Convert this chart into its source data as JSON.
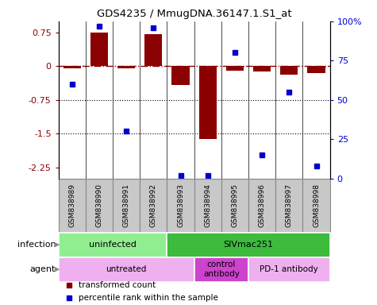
{
  "title": "GDS4235 / MmugDNA.36147.1.S1_at",
  "samples": [
    "GSM838989",
    "GSM838990",
    "GSM838991",
    "GSM838992",
    "GSM838993",
    "GSM838994",
    "GSM838995",
    "GSM838996",
    "GSM838997",
    "GSM838998"
  ],
  "bar_values": [
    -0.05,
    0.75,
    -0.05,
    0.72,
    -0.42,
    -1.62,
    -0.1,
    -0.12,
    -0.18,
    -0.15
  ],
  "dot_values": [
    60,
    97,
    30,
    96,
    2,
    2,
    80,
    15,
    55,
    8
  ],
  "ylim_left": [
    -2.5,
    1.0
  ],
  "ylim_right": [
    0,
    100
  ],
  "left_ticks": [
    0.75,
    0,
    -0.75,
    -1.5,
    -2.25
  ],
  "right_ticks": [
    100,
    75,
    50,
    25,
    0
  ],
  "dotted_lines": [
    -0.75,
    -1.5
  ],
  "bar_color": "#8B0000",
  "dot_color": "#0000CD",
  "infection_groups": [
    {
      "label": "uninfected",
      "start": 0,
      "end": 3,
      "color": "#90EE90"
    },
    {
      "label": "SIVmac251",
      "start": 4,
      "end": 9,
      "color": "#3CBB3C"
    }
  ],
  "agent_groups": [
    {
      "label": "untreated",
      "start": 0,
      "end": 4,
      "color": "#EEB0EE"
    },
    {
      "label": "control\nantibody",
      "start": 5,
      "end": 6,
      "color": "#CC44CC"
    },
    {
      "label": "PD-1 antibody",
      "start": 7,
      "end": 9,
      "color": "#EEB0EE"
    }
  ],
  "legend_items": [
    {
      "label": "transformed count",
      "color": "#8B0000"
    },
    {
      "label": "percentile rank within the sample",
      "color": "#0000CD"
    }
  ],
  "sample_box_color": "#C8C8C8",
  "sample_box_edge": "#888888"
}
